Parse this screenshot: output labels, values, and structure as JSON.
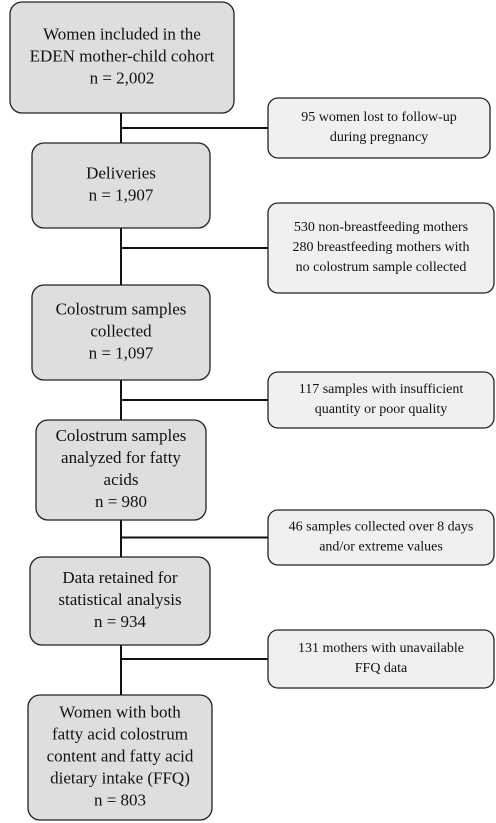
{
  "main_boxes": [
    {
      "lines": [
        "Women included in the",
        "EDEN mother-child cohort",
        "n = 2,002"
      ]
    },
    {
      "lines": [
        "Deliveries",
        "n = 1,907"
      ]
    },
    {
      "lines": [
        "Colostrum samples",
        "collected",
        "n = 1,097"
      ]
    },
    {
      "lines": [
        "Colostrum samples",
        "analyzed for fatty",
        "acids",
        "n = 980"
      ]
    },
    {
      "lines": [
        "Data retained for",
        "statistical analysis",
        "n = 934"
      ]
    },
    {
      "lines": [
        "Women with both",
        "fatty acid colostrum",
        "content and fatty acid",
        "dietary intake (FFQ)",
        "n = 803"
      ]
    }
  ],
  "exclusion_boxes": [
    {
      "lines": [
        "95 women lost to follow-up",
        "during pregnancy"
      ]
    },
    {
      "lines": [
        "530 non-breastfeeding mothers",
        "280 breastfeeding mothers with",
        "no colostrum sample collected"
      ]
    },
    {
      "lines": [
        "117 samples with insufficient",
        "quantity or poor quality"
      ]
    },
    {
      "lines": [
        "46 samples collected over 8 days",
        "and/or extreme values"
      ]
    },
    {
      "lines": [
        "131 mothers with unavailable",
        "FFQ data"
      ]
    }
  ]
}
